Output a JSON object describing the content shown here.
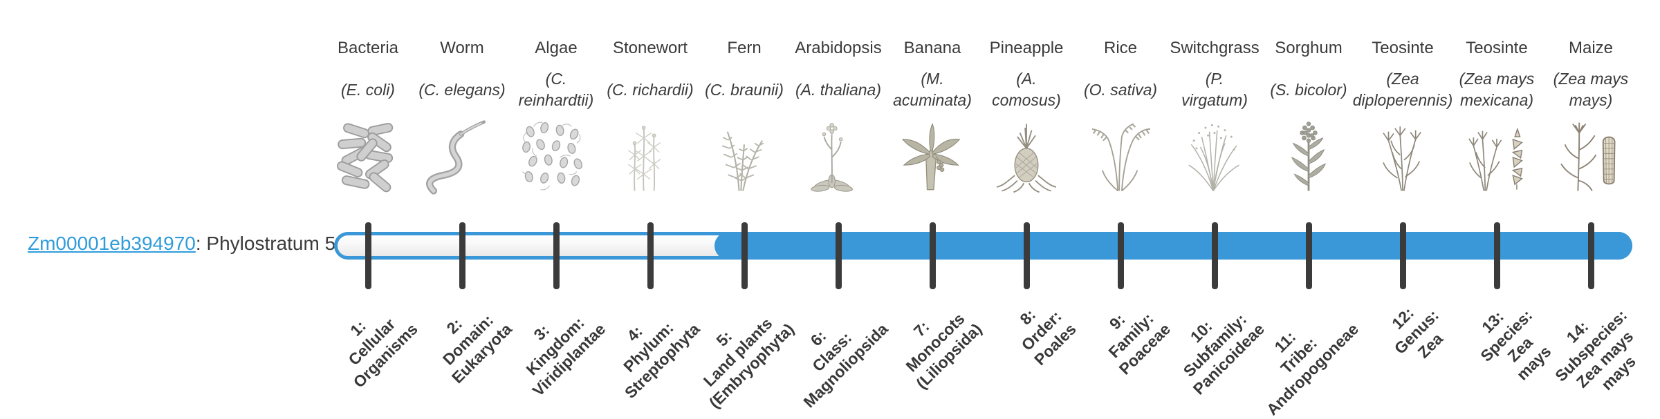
{
  "figure": {
    "type": "phylostratigraphy-timeline",
    "background": "#ffffff"
  },
  "gene": {
    "id": "Zm00001eb394970",
    "label_suffix": ": Phylostratum 5",
    "phylostratum": 5,
    "link_color": "#2f9cdb"
  },
  "timeline": {
    "num_strata": 14,
    "filled_from_stratum": 5,
    "bar_color": "#3a97d8",
    "track_fill": "#f6f6f6",
    "tick_color": "#3b3b3b",
    "text_color": "#3b3b3b"
  },
  "strata": [
    {
      "index": 1,
      "name": "Bacteria",
      "species": "(E. coli)",
      "icon": "bacteria",
      "rank_label": "1:\nCellular\nOrganisms"
    },
    {
      "index": 2,
      "name": "Worm",
      "species": "(C. elegans)",
      "icon": "worm",
      "rank_label": "2:\nDomain:\nEukaryota"
    },
    {
      "index": 3,
      "name": "Algae",
      "species": "(C.\nreinhardtii)",
      "icon": "algae",
      "rank_label": "3:\nKingdom:\nViridiplantae"
    },
    {
      "index": 4,
      "name": "Stonewort",
      "species": "(C. richardii)",
      "icon": "stonewort",
      "rank_label": "4:\nPhylum:\nStreptophyta"
    },
    {
      "index": 5,
      "name": "Fern",
      "species": "(C. braunii)",
      "icon": "fern",
      "rank_label": "5:\nLand plants\n(Embryophyta)"
    },
    {
      "index": 6,
      "name": "Arabidopsis",
      "species": "(A. thaliana)",
      "icon": "arabidopsis",
      "rank_label": "6:\nClass:\nMagnoliopsida"
    },
    {
      "index": 7,
      "name": "Banana",
      "species": "(M.\nacuminata)",
      "icon": "banana",
      "rank_label": "7:\nMonocots\n(Liliopsida)"
    },
    {
      "index": 8,
      "name": "Pineapple",
      "species": "(A.\ncomosus)",
      "icon": "pineapple",
      "rank_label": "8:\nOrder:\nPoales"
    },
    {
      "index": 9,
      "name": "Rice",
      "species": "(O. sativa)",
      "icon": "rice",
      "rank_label": "9:\nFamily:\nPoaceae"
    },
    {
      "index": 10,
      "name": "Switchgrass",
      "species": "(P.\nvirgatum)",
      "icon": "switchgrass",
      "rank_label": "10:\nSubfamily:\nPanicoideae"
    },
    {
      "index": 11,
      "name": "Sorghum",
      "species": "(S. bicolor)",
      "icon": "sorghum",
      "rank_label": "11:\nTribe:\nAndropogoneae"
    },
    {
      "index": 12,
      "name": "Teosinte",
      "species": "(Zea\ndiploperennis)",
      "icon": "teosinte-diploperennis",
      "rank_label": "12:\nGenus:\nZea"
    },
    {
      "index": 13,
      "name": "Teosinte",
      "species": "(Zea mays\nmexicana)",
      "icon": "teosinte-mexicana",
      "rank_label": "13:\nSpecies:\nZea\nmays"
    },
    {
      "index": 14,
      "name": "Maize",
      "species": "(Zea mays\nmays)",
      "icon": "maize",
      "rank_label": "14:\nSubspecies:\nZea mays\nmays"
    }
  ]
}
